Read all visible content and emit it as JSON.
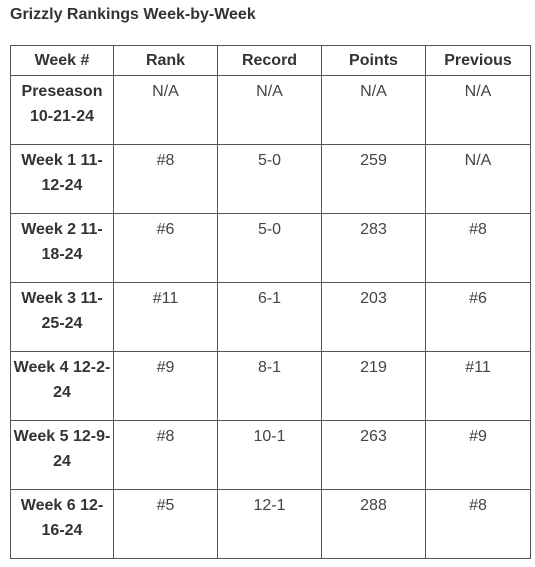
{
  "title": "Grizzly Rankings Week-by-Week",
  "table": {
    "headers": [
      "Week #",
      "Rank",
      "Record",
      "Points",
      "Previous"
    ],
    "rows": [
      {
        "week_line1": "Preseason",
        "week_line2": "10-21-24",
        "rank": "N/A",
        "record": "N/A",
        "points": "N/A",
        "previous": "N/A"
      },
      {
        "week_line1": "Week 1 11-",
        "week_line2": "12-24",
        "rank": "#8",
        "record": "5-0",
        "points": "259",
        "previous": "N/A"
      },
      {
        "week_line1": "Week 2 11-",
        "week_line2": "18-24",
        "rank": "#6",
        "record": "5-0",
        "points": "283",
        "previous": "#8"
      },
      {
        "week_line1": "Week 3 11-",
        "week_line2": "25-24",
        "rank": "#11",
        "record": "6-1",
        "points": "203",
        "previous": "#6"
      },
      {
        "week_line1": "Week 4 12-2-",
        "week_line2": "24",
        "rank": "#9",
        "record": "8-1",
        "points": "219",
        "previous": "#11"
      },
      {
        "week_line1": "Week 5 12-9-",
        "week_line2": "24",
        "rank": "#8",
        "record": "10-1",
        "points": "263",
        "previous": "#9"
      },
      {
        "week_line1": "Week 6 12-",
        "week_line2": "16-24",
        "rank": "#5",
        "record": "12-1",
        "points": "288",
        "previous": "#8"
      }
    ]
  }
}
